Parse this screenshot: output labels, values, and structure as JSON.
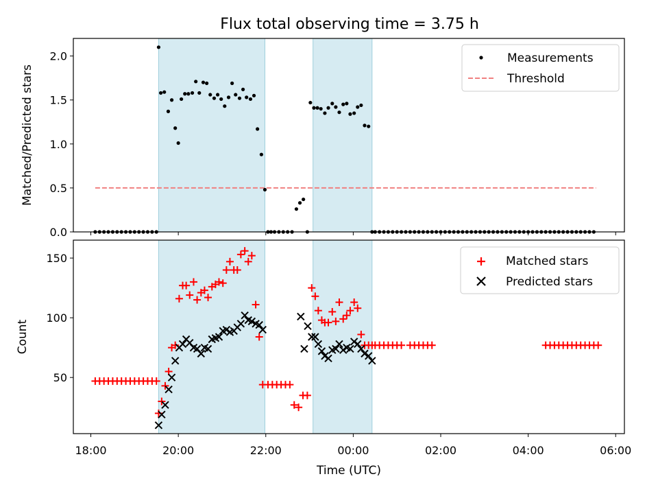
{
  "title": "Flux total observing time = 3.75 h",
  "chart_data": [
    {
      "type": "scatter",
      "title": "Flux total observing time = 3.75 h",
      "xlabel": "",
      "ylabel": "Matched/Predicted stars",
      "xlim": [
        -0.4,
        12.2
      ],
      "ylim": [
        0.0,
        2.2
      ],
      "yticks": [
        0.0,
        0.5,
        1.0,
        1.5,
        2.0
      ],
      "ytick_labels": [
        "0.0",
        "0.5",
        "1.0",
        "1.5",
        "2.0"
      ],
      "legend_position": "top-right",
      "shaded_intervals": [
        [
          1.55,
          3.98
        ],
        [
          5.08,
          6.43
        ]
      ],
      "series": [
        {
          "name": "Measurements",
          "marker": "dot",
          "color": "#000000",
          "x": [
            0.1,
            0.2,
            0.3,
            0.4,
            0.5,
            0.6,
            0.7,
            0.8,
            0.9,
            1.0,
            1.1,
            1.2,
            1.3,
            1.4,
            1.5,
            1.55,
            1.6,
            1.68,
            1.77,
            1.85,
            1.93,
            2.0,
            2.07,
            2.15,
            2.23,
            2.32,
            2.4,
            2.48,
            2.57,
            2.65,
            2.73,
            2.82,
            2.9,
            2.98,
            3.06,
            3.15,
            3.23,
            3.31,
            3.4,
            3.48,
            3.56,
            3.65,
            3.73,
            3.81,
            3.9,
            3.98,
            4.05,
            4.12,
            4.2,
            4.3,
            4.4,
            4.5,
            4.6,
            4.7,
            4.78,
            4.86,
            4.95,
            5.02,
            5.1,
            5.18,
            5.26,
            5.35,
            5.43,
            5.52,
            5.6,
            5.68,
            5.77,
            5.85,
            5.93,
            6.02,
            6.1,
            6.18,
            6.26,
            6.35,
            6.43,
            6.5,
            6.6,
            6.7,
            6.8,
            6.9,
            7.0,
            7.1,
            7.2,
            7.3,
            7.4,
            7.5,
            7.6,
            7.7,
            7.8,
            7.9,
            8.0,
            8.1,
            8.2,
            8.3,
            8.4,
            8.5,
            8.6,
            8.7,
            8.8,
            8.9,
            9.0,
            9.1,
            9.2,
            9.3,
            9.4,
            9.5,
            9.6,
            9.7,
            9.8,
            9.9,
            10.0,
            10.1,
            10.2,
            10.3,
            10.4,
            10.5,
            10.6,
            10.7,
            10.8,
            10.9,
            11.0,
            11.1,
            11.2,
            11.3,
            11.4,
            11.5
          ],
          "y": [
            0,
            0,
            0,
            0,
            0,
            0,
            0,
            0,
            0,
            0,
            0,
            0,
            0,
            0,
            0,
            2.1,
            1.58,
            1.59,
            1.37,
            1.5,
            1.18,
            1.01,
            1.51,
            1.57,
            1.57,
            1.58,
            1.71,
            1.58,
            1.7,
            1.69,
            1.56,
            1.52,
            1.56,
            1.51,
            1.43,
            1.53,
            1.69,
            1.56,
            1.52,
            1.62,
            1.53,
            1.51,
            1.55,
            1.17,
            0.88,
            0.48,
            0,
            0,
            0,
            0,
            0,
            0,
            0,
            0.26,
            0.33,
            0.37,
            0,
            1.47,
            1.41,
            1.41,
            1.4,
            1.35,
            1.41,
            1.46,
            1.42,
            1.36,
            1.45,
            1.46,
            1.34,
            1.35,
            1.42,
            1.44,
            1.21,
            1.2,
            0,
            0,
            0,
            0,
            0,
            0,
            0,
            0,
            0,
            0,
            0,
            0,
            0,
            0,
            0,
            0,
            0,
            0,
            0,
            0,
            0,
            0,
            0,
            0,
            0,
            0,
            0,
            0,
            0,
            0,
            0,
            0,
            0,
            0,
            0,
            0,
            0,
            0,
            0,
            0,
            0,
            0,
            0,
            0,
            0,
            0,
            0,
            0,
            0,
            0,
            0,
            0
          ]
        },
        {
          "name": "Threshold",
          "line": "dashed",
          "color": "#f08080",
          "x": [
            0.1,
            11.55
          ],
          "y": [
            0.5,
            0.5
          ]
        }
      ]
    },
    {
      "type": "scatter",
      "title": "",
      "xlabel": "Time (UTC)",
      "ylabel": "Count",
      "xlim": [
        -0.4,
        12.2
      ],
      "ylim": [
        3,
        165
      ],
      "yticks": [
        50,
        100,
        150
      ],
      "ytick_labels": [
        "50",
        "100",
        "150"
      ],
      "xticks": [
        0,
        2,
        4,
        6,
        8,
        10,
        12
      ],
      "xtick_labels": [
        "18:00",
        "20:00",
        "22:00",
        "00:00",
        "02:00",
        "04:00",
        "06:00"
      ],
      "legend_position": "top-right",
      "shaded_intervals": [
        [
          1.55,
          3.98
        ],
        [
          5.08,
          6.43
        ]
      ],
      "series": [
        {
          "name": "Matched stars",
          "marker": "plus",
          "color": "#ff0000",
          "x": [
            0.1,
            0.2,
            0.3,
            0.4,
            0.5,
            0.6,
            0.7,
            0.8,
            0.9,
            1.0,
            1.1,
            1.2,
            1.3,
            1.4,
            1.5,
            1.55,
            1.62,
            1.7,
            1.78,
            1.85,
            1.93,
            2.02,
            2.1,
            2.18,
            2.26,
            2.35,
            2.43,
            2.52,
            2.6,
            2.68,
            2.77,
            2.85,
            2.93,
            3.02,
            3.1,
            3.18,
            3.27,
            3.35,
            3.43,
            3.52,
            3.6,
            3.68,
            3.77,
            3.85,
            3.93,
            4.05,
            4.15,
            4.25,
            4.35,
            4.45,
            4.55,
            4.65,
            4.75,
            4.85,
            4.95,
            5.05,
            5.13,
            5.2,
            5.28,
            5.35,
            5.43,
            5.52,
            5.6,
            5.68,
            5.77,
            5.85,
            5.93,
            6.02,
            6.1,
            6.18,
            6.26,
            6.35,
            6.43,
            6.5,
            6.6,
            6.7,
            6.8,
            6.9,
            7.0,
            7.1,
            7.3,
            7.4,
            7.5,
            7.6,
            7.7,
            7.8,
            10.4,
            10.5,
            10.6,
            10.7,
            10.8,
            10.9,
            11.0,
            11.1,
            11.2,
            11.3,
            11.4,
            11.5,
            11.6
          ],
          "y": [
            47,
            47,
            47,
            47,
            47,
            47,
            47,
            47,
            47,
            47,
            47,
            47,
            47,
            47,
            47,
            20,
            30,
            43,
            55,
            75,
            77,
            116,
            127,
            127,
            119,
            130,
            115,
            121,
            123,
            117,
            126,
            128,
            130,
            129,
            140,
            147,
            140,
            140,
            153,
            156,
            147,
            152,
            111,
            84,
            44,
            44,
            44,
            44,
            44,
            44,
            44,
            27,
            25,
            35,
            35,
            125,
            118,
            106,
            98,
            96,
            96,
            105,
            97,
            113,
            99,
            102,
            106,
            113,
            108,
            86,
            77,
            77,
            77,
            77,
            77,
            77,
            77,
            77,
            77,
            77,
            77,
            77,
            77,
            77,
            77,
            77,
            77,
            77,
            77,
            77,
            77,
            77,
            77,
            77,
            77,
            77,
            77,
            77,
            77
          ]
        },
        {
          "name": "Predicted stars",
          "marker": "x",
          "color": "#000000",
          "x": [
            1.55,
            1.62,
            1.7,
            1.78,
            1.85,
            1.93,
            2.02,
            2.1,
            2.18,
            2.26,
            2.35,
            2.43,
            2.52,
            2.6,
            2.68,
            2.77,
            2.85,
            2.93,
            3.02,
            3.1,
            3.18,
            3.27,
            3.35,
            3.43,
            3.52,
            3.6,
            3.68,
            3.77,
            3.85,
            3.93,
            4.8,
            4.88,
            4.96,
            5.05,
            5.13,
            5.2,
            5.28,
            5.35,
            5.43,
            5.52,
            5.6,
            5.68,
            5.77,
            5.85,
            5.93,
            6.02,
            6.1,
            6.18,
            6.26,
            6.35,
            6.43
          ],
          "y": [
            10,
            19,
            27,
            40,
            50,
            64,
            75,
            78,
            82,
            79,
            75,
            74,
            70,
            75,
            74,
            82,
            83,
            84,
            89,
            90,
            88,
            89,
            92,
            95,
            102,
            98,
            97,
            95,
            94,
            90,
            101,
            74,
            93,
            84,
            84,
            78,
            72,
            68,
            66,
            73,
            74,
            78,
            73,
            75,
            74,
            80,
            78,
            74,
            70,
            68,
            64
          ]
        }
      ]
    }
  ]
}
